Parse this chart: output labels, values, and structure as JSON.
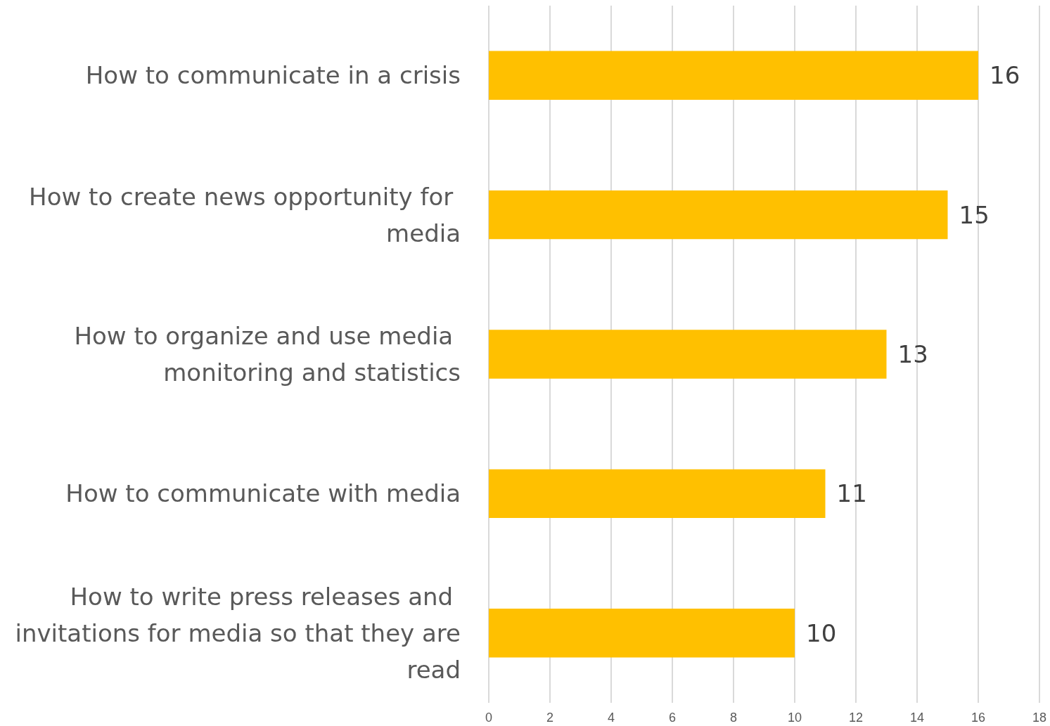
{
  "chart_data": {
    "type": "bar",
    "orientation": "horizontal",
    "categories": [
      "How to communicate in a crisis",
      "How to create news opportunity for media",
      "How to organize and use media monitoring and statistics",
      "How to communicate with media",
      "How to write press releases and invitations for media so that they are read"
    ],
    "values": [
      16,
      15,
      13,
      11,
      10
    ],
    "color": "#ffc000",
    "xlim": [
      0,
      18
    ],
    "xticks": [
      0,
      2,
      4,
      6,
      8,
      10,
      12,
      14,
      16,
      18
    ],
    "grid": "x",
    "data_labels": true
  }
}
